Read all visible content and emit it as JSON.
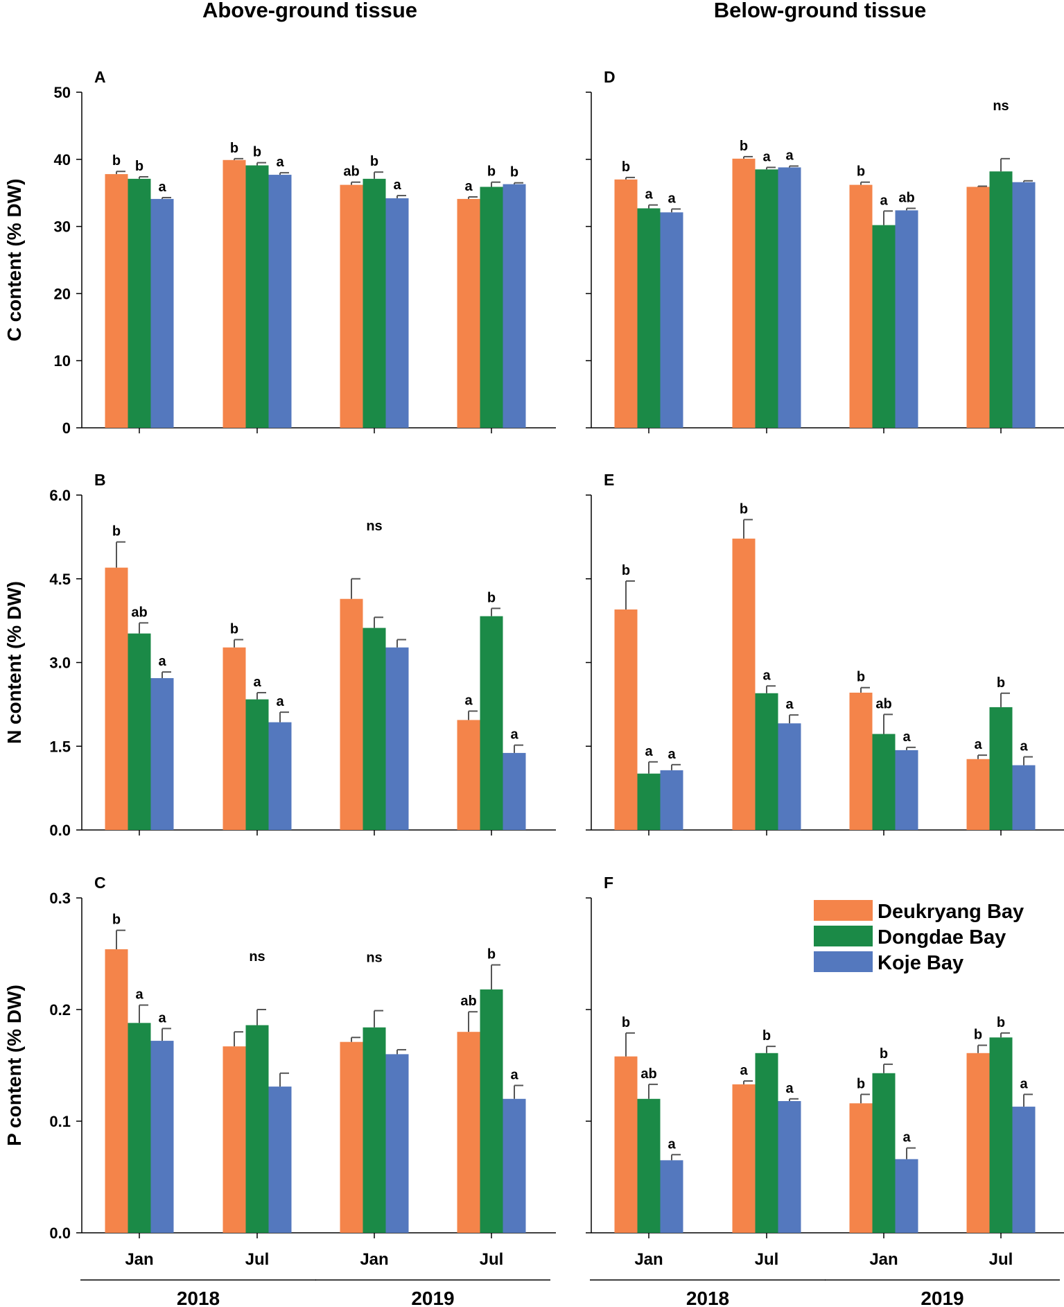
{
  "column_titles": [
    "Above-ground tissue",
    "Below-ground tissue"
  ],
  "categories": [
    "Jan",
    "Jul",
    "Jan",
    "Jul"
  ],
  "year_groups": [
    {
      "label": "2018",
      "categories": [
        0,
        1
      ]
    },
    {
      "label": "2019",
      "categories": [
        2,
        3
      ]
    }
  ],
  "legend": {
    "entries": [
      {
        "name": "Deukryang Bay",
        "color": "#f4844a"
      },
      {
        "name": "Dongdae Bay",
        "color": "#1b8a47"
      },
      {
        "name": "Koje Bay",
        "color": "#5478be"
      }
    ]
  },
  "colors": {
    "Deukryang Bay": "#f4844a",
    "Dongdae Bay": "#1b8a47",
    "Koje Bay": "#5478be",
    "axis": "#000000",
    "error_bar": "#555555"
  },
  "chart_data": [
    {
      "type": "bar",
      "panel": "A",
      "ylabel": "C content (% DW)",
      "ylim": [
        0,
        50
      ],
      "yticks": [
        "0",
        "10",
        "20",
        "30",
        "40",
        "50"
      ],
      "ytick_values": [
        0,
        10,
        20,
        30,
        40,
        50
      ],
      "categories": [
        "Jan",
        "Jul",
        "Jan",
        "Jul"
      ],
      "series": [
        {
          "name": "Deukryang Bay",
          "values": [
            37.8,
            39.9,
            36.2,
            34.1
          ],
          "errors": [
            0.4,
            0.2,
            0.4,
            0.3
          ],
          "letters": [
            "b",
            "b",
            "ab",
            "a"
          ]
        },
        {
          "name": "Dongdae Bay",
          "values": [
            37.1,
            39.1,
            37.1,
            35.9
          ],
          "errors": [
            0.3,
            0.4,
            1.0,
            0.7
          ],
          "letters": [
            "b",
            "b",
            "b",
            "b"
          ]
        },
        {
          "name": "Koje Bay",
          "values": [
            34.1,
            37.7,
            34.2,
            36.3
          ],
          "errors": [
            0.2,
            0.3,
            0.4,
            0.2
          ],
          "letters": [
            "a",
            "a",
            "a",
            "b"
          ]
        }
      ],
      "annotations": []
    },
    {
      "type": "bar",
      "panel": "B",
      "ylabel": "N content (% DW)",
      "ylim": [
        0,
        6
      ],
      "yticks": [
        "0.0",
        "1.5",
        "3.0",
        "4.5",
        "6.0"
      ],
      "ytick_values": [
        0,
        1.5,
        3.0,
        4.5,
        6.0
      ],
      "categories": [
        "Jan",
        "Jul",
        "Jan",
        "Jul"
      ],
      "series": [
        {
          "name": "Deukryang Bay",
          "values": [
            4.7,
            3.27,
            4.14,
            1.97
          ],
          "errors": [
            0.46,
            0.14,
            0.36,
            0.16
          ],
          "letters": [
            "b",
            "b",
            "",
            "a"
          ]
        },
        {
          "name": "Dongdae Bay",
          "values": [
            3.52,
            2.34,
            3.62,
            3.83
          ],
          "errors": [
            0.19,
            0.12,
            0.19,
            0.14
          ],
          "letters": [
            "ab",
            "a",
            "",
            "b"
          ]
        },
        {
          "name": "Koje Bay",
          "values": [
            2.72,
            1.93,
            3.27,
            1.38
          ],
          "errors": [
            0.11,
            0.18,
            0.14,
            0.14
          ],
          "letters": [
            "a",
            "a",
            "",
            "a"
          ]
        }
      ],
      "annotations": [
        {
          "text": "ns",
          "category": 2
        }
      ]
    },
    {
      "type": "bar",
      "panel": "C",
      "ylabel": "P content (% DW)",
      "ylim": [
        0,
        0.3
      ],
      "yticks": [
        "0.0",
        "0.1",
        "0.2",
        "0.3"
      ],
      "ytick_values": [
        0,
        0.1,
        0.2,
        0.3
      ],
      "categories": [
        "Jan",
        "Jul",
        "Jan",
        "Jul"
      ],
      "series": [
        {
          "name": "Deukryang Bay",
          "values": [
            0.254,
            0.167,
            0.171,
            0.18
          ],
          "errors": [
            0.017,
            0.013,
            0.004,
            0.018
          ],
          "letters": [
            "b",
            "",
            "",
            "ab"
          ]
        },
        {
          "name": "Dongdae Bay",
          "values": [
            0.188,
            0.186,
            0.184,
            0.218
          ],
          "errors": [
            0.016,
            0.014,
            0.015,
            0.022
          ],
          "letters": [
            "a",
            "",
            "",
            "b"
          ]
        },
        {
          "name": "Koje Bay",
          "values": [
            0.172,
            0.131,
            0.16,
            0.12
          ],
          "errors": [
            0.011,
            0.012,
            0.004,
            0.012
          ],
          "letters": [
            "a",
            "",
            "",
            "a"
          ]
        }
      ],
      "annotations": [
        {
          "text": "ns",
          "category": 1
        },
        {
          "text": "ns",
          "category": 2
        }
      ]
    },
    {
      "type": "bar",
      "panel": "D",
      "ylabel": "",
      "ylim": [
        0,
        50
      ],
      "yticks": [
        "",
        "",
        "",
        "",
        "",
        ""
      ],
      "ytick_values": [
        0,
        10,
        20,
        30,
        40,
        50
      ],
      "categories": [
        "Jan",
        "Jul",
        "Jan",
        "Jul"
      ],
      "series": [
        {
          "name": "Deukryang Bay",
          "values": [
            37.0,
            40.1,
            36.2,
            35.9
          ],
          "errors": [
            0.3,
            0.3,
            0.4,
            0.1
          ],
          "letters": [
            "b",
            "b",
            "b",
            ""
          ]
        },
        {
          "name": "Dongdae Bay",
          "values": [
            32.7,
            38.5,
            30.2,
            38.2
          ],
          "errors": [
            0.5,
            0.3,
            2.1,
            1.9
          ],
          "letters": [
            "a",
            "a",
            "a",
            ""
          ]
        },
        {
          "name": "Koje Bay",
          "values": [
            32.1,
            38.8,
            32.4,
            36.6
          ],
          "errors": [
            0.5,
            0.2,
            0.3,
            0.2
          ],
          "letters": [
            "a",
            "a",
            "ab",
            ""
          ]
        }
      ],
      "annotations": [
        {
          "text": "ns",
          "category": 3
        }
      ]
    },
    {
      "type": "bar",
      "panel": "E",
      "ylabel": "",
      "ylim": [
        0,
        6
      ],
      "yticks": [
        "",
        "",
        "",
        "",
        ""
      ],
      "ytick_values": [
        0,
        1.5,
        3.0,
        4.5,
        6.0
      ],
      "categories": [
        "Jan",
        "Jul",
        "Jan",
        "Jul"
      ],
      "series": [
        {
          "name": "Deukryang Bay",
          "values": [
            3.95,
            5.22,
            2.46,
            1.27
          ],
          "errors": [
            0.51,
            0.34,
            0.09,
            0.07
          ],
          "letters": [
            "b",
            "b",
            "b",
            "a"
          ]
        },
        {
          "name": "Dongdae Bay",
          "values": [
            1.01,
            2.45,
            1.72,
            2.2
          ],
          "errors": [
            0.21,
            0.13,
            0.35,
            0.25
          ],
          "letters": [
            "a",
            "a",
            "ab",
            "b"
          ]
        },
        {
          "name": "Koje Bay",
          "values": [
            1.07,
            1.91,
            1.43,
            1.16
          ],
          "errors": [
            0.1,
            0.15,
            0.05,
            0.15
          ],
          "letters": [
            "a",
            "a",
            "a",
            "a"
          ]
        }
      ],
      "annotations": []
    },
    {
      "type": "bar",
      "panel": "F",
      "ylabel": "",
      "ylim": [
        0,
        0.3
      ],
      "yticks": [
        "",
        "",
        "",
        ""
      ],
      "ytick_values": [
        0,
        0.1,
        0.2,
        0.3
      ],
      "categories": [
        "Jan",
        "Jul",
        "Jan",
        "Jul"
      ],
      "series": [
        {
          "name": "Deukryang Bay",
          "values": [
            0.158,
            0.133,
            0.116,
            0.161
          ],
          "errors": [
            0.021,
            0.003,
            0.008,
            0.007
          ],
          "letters": [
            "b",
            "a",
            "b",
            "b"
          ]
        },
        {
          "name": "Dongdae Bay",
          "values": [
            0.12,
            0.161,
            0.143,
            0.175
          ],
          "errors": [
            0.013,
            0.006,
            0.008,
            0.004
          ],
          "letters": [
            "ab",
            "b",
            "b",
            "b"
          ]
        },
        {
          "name": "Koje Bay",
          "values": [
            0.065,
            0.118,
            0.066,
            0.113
          ],
          "errors": [
            0.005,
            0.002,
            0.01,
            0.011
          ],
          "letters": [
            "a",
            "a",
            "a",
            "a"
          ]
        }
      ],
      "annotations": [],
      "legend_shown": true
    }
  ]
}
